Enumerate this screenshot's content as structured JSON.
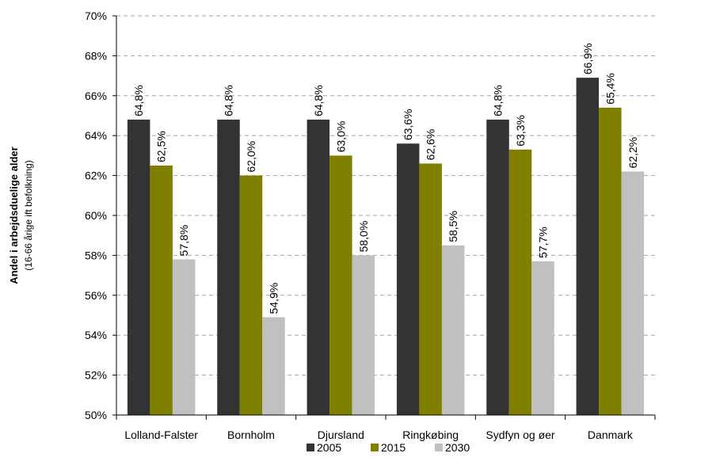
{
  "chart_data": {
    "type": "bar",
    "title": "",
    "ylabel": "Andel i arbejdsduelige alder",
    "ylabel_sub": "(16-66 årige ift befolkning)",
    "xlabel": "",
    "ylim": [
      50,
      70
    ],
    "ytick_step": 2,
    "yticks": [
      "50%",
      "52%",
      "54%",
      "56%",
      "58%",
      "60%",
      "62%",
      "64%",
      "66%",
      "68%",
      "70%"
    ],
    "grid": true,
    "legend_position": "bottom",
    "categories": [
      "Lolland-Falster",
      "Bornholm",
      "Djursland",
      "Ringkøbing",
      "Sydfyn og øer",
      "Danmark"
    ],
    "series": [
      {
        "name": "2005",
        "color": "#333333",
        "values": [
          64.8,
          64.8,
          64.8,
          63.6,
          64.8,
          66.9
        ],
        "labels": [
          "64,8%",
          "64,8%",
          "64,8%",
          "63,6%",
          "64,8%",
          "66,9%"
        ]
      },
      {
        "name": "2015",
        "color": "#808000",
        "values": [
          62.5,
          62.0,
          63.0,
          62.6,
          63.3,
          65.4
        ],
        "labels": [
          "62,5%",
          "62,0%",
          "63,0%",
          "62,6%",
          "63,3%",
          "65,4%"
        ]
      },
      {
        "name": "2030",
        "color": "#c0c0c0",
        "values": [
          57.8,
          54.9,
          58.0,
          58.5,
          57.7,
          62.2
        ],
        "labels": [
          "57,8%",
          "54,9%",
          "58,0%",
          "58,5%",
          "57,7%",
          "62,2%"
        ]
      }
    ]
  }
}
